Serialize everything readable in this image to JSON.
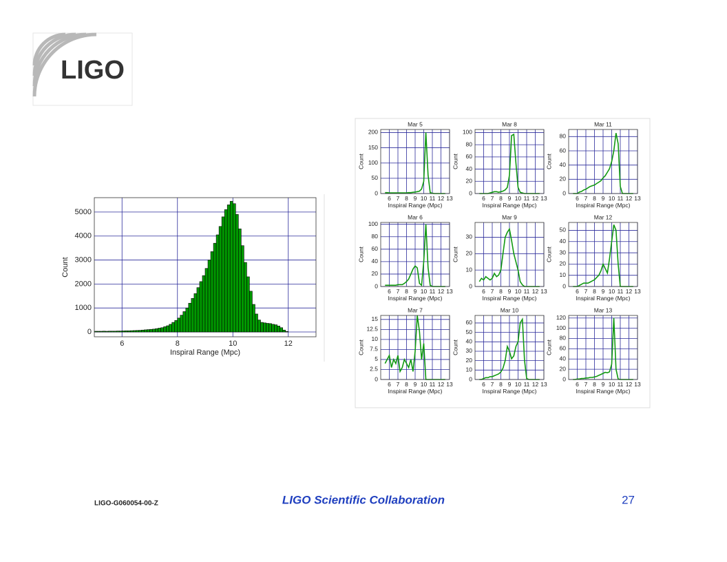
{
  "header": {
    "logo": "LIGO"
  },
  "chart_data": [
    {
      "type": "histogram",
      "xlabel": "Inspiral Range (Mpc)",
      "ylabel": "Count",
      "color": "#009900",
      "grid": true,
      "xlim": [
        5,
        13
      ],
      "ylim": [
        -200,
        5600
      ],
      "xticks": [
        6,
        8,
        10,
        12
      ],
      "yticks": [
        0,
        1000,
        2000,
        3000,
        4000,
        5000
      ],
      "bins": [
        5,
        5.1,
        5.2,
        5.3,
        5.4,
        5.5,
        5.6,
        5.7,
        5.8,
        5.9,
        6,
        6.1,
        6.2,
        6.3,
        6.4,
        6.5,
        6.6,
        6.7,
        6.8,
        6.9,
        7,
        7.1,
        7.2,
        7.3,
        7.4,
        7.5,
        7.6,
        7.7,
        7.8,
        7.9,
        8,
        8.1,
        8.2,
        8.3,
        8.4,
        8.5,
        8.6,
        8.7,
        8.8,
        8.9,
        9,
        9.1,
        9.2,
        9.3,
        9.4,
        9.5,
        9.6,
        9.7,
        9.8,
        9.9,
        10,
        10.1,
        10.2,
        10.3,
        10.4,
        10.5,
        10.6,
        10.7,
        10.8,
        10.9,
        11,
        11.1,
        11.2,
        11.3,
        11.4,
        11.5,
        11.6,
        11.7,
        11.8,
        11.9,
        12
      ],
      "values": [
        30,
        30,
        30,
        35,
        30,
        35,
        35,
        35,
        40,
        40,
        45,
        50,
        50,
        55,
        60,
        65,
        70,
        80,
        90,
        100,
        110,
        120,
        140,
        160,
        180,
        220,
        260,
        320,
        400,
        480,
        580,
        700,
        850,
        1000,
        1200,
        1400,
        1600,
        1850,
        2100,
        2350,
        2650,
        3000,
        3350,
        3700,
        4050,
        4400,
        4800,
        5100,
        5300,
        5450,
        5350,
        4900,
        4300,
        3600,
        2900,
        2300,
        1700,
        1150,
        750,
        500,
        400,
        380,
        360,
        350,
        320,
        300,
        250,
        180,
        80,
        20
      ]
    },
    {
      "type": "line",
      "title": "Mar 5",
      "xlabel": "Inspiral Range (Mpc)",
      "ylabel": "Count",
      "color": "#119911",
      "grid": true,
      "xlim": [
        5,
        13
      ],
      "ylim": [
        0,
        210
      ],
      "xticks": [
        6,
        7,
        8,
        9,
        10,
        11,
        12,
        13
      ],
      "yticks": [
        0,
        50,
        100,
        150,
        200
      ],
      "x": [
        5.5,
        5.75,
        6,
        6.25,
        6.5,
        6.75,
        7,
        7.25,
        7.5,
        7.75,
        8,
        8.25,
        8.5,
        8.75,
        9,
        9.25,
        9.5,
        9.75,
        10,
        10.25,
        10.5,
        10.75,
        11,
        11.25,
        11.5,
        11.75,
        12,
        12.25,
        12.5
      ],
      "values": [
        3,
        3,
        2,
        2,
        2,
        2,
        2,
        2,
        2,
        2,
        2,
        3,
        3,
        4,
        5,
        6,
        8,
        15,
        40,
        200,
        60,
        3,
        1,
        0,
        0,
        0,
        0,
        0,
        0
      ]
    },
    {
      "type": "line",
      "title": "Mar 8",
      "xlabel": "Inspiral Range (Mpc)",
      "ylabel": "Count",
      "color": "#119911",
      "grid": true,
      "xlim": [
        5,
        13
      ],
      "ylim": [
        0,
        105
      ],
      "xticks": [
        6,
        7,
        8,
        9,
        10,
        11,
        12,
        13
      ],
      "yticks": [
        0,
        20,
        40,
        60,
        80,
        100
      ],
      "x": [
        5.5,
        5.75,
        6,
        6.25,
        6.5,
        6.75,
        7,
        7.25,
        7.5,
        7.75,
        8,
        8.25,
        8.5,
        8.75,
        9,
        9.25,
        9.5,
        9.75,
        10,
        10.25,
        10.5,
        10.75,
        11,
        11.25,
        11.5,
        11.75,
        12,
        12.25,
        12.5
      ],
      "values": [
        0,
        0,
        0,
        0,
        0,
        1,
        2,
        3,
        3,
        2,
        3,
        4,
        6,
        10,
        30,
        95,
        97,
        50,
        10,
        2,
        1,
        0,
        0,
        0,
        0,
        0,
        0,
        0,
        0
      ]
    },
    {
      "type": "line",
      "title": "Mar 11",
      "xlabel": "Inspiral Range (Mpc)",
      "ylabel": "Count",
      "color": "#119911",
      "grid": true,
      "xlim": [
        5,
        13
      ],
      "ylim": [
        0,
        90
      ],
      "xticks": [
        6,
        7,
        8,
        9,
        10,
        11,
        12,
        13
      ],
      "yticks": [
        0,
        20,
        40,
        60,
        80
      ],
      "x": [
        5.5,
        5.75,
        6,
        6.25,
        6.5,
        6.75,
        7,
        7.25,
        7.5,
        7.75,
        8,
        8.25,
        8.5,
        8.75,
        9,
        9.25,
        9.5,
        9.75,
        10,
        10.25,
        10.5,
        10.75,
        11,
        11.25,
        11.5,
        11.75,
        12,
        12.25,
        12.5
      ],
      "values": [
        0,
        0,
        0,
        2,
        3,
        5,
        6,
        8,
        10,
        11,
        12,
        14,
        16,
        18,
        22,
        25,
        30,
        35,
        45,
        60,
        85,
        70,
        10,
        0,
        0,
        0,
        0,
        0,
        0
      ]
    },
    {
      "type": "line",
      "title": "Mar 6",
      "xlabel": "Inspiral Range (Mpc)",
      "ylabel": "Count",
      "color": "#119911",
      "grid": true,
      "xlim": [
        5,
        13
      ],
      "ylim": [
        0,
        103
      ],
      "xticks": [
        6,
        7,
        8,
        9,
        10,
        11,
        12,
        13
      ],
      "yticks": [
        0,
        20,
        40,
        60,
        80,
        100
      ],
      "x": [
        5.5,
        5.75,
        6,
        6.25,
        6.5,
        6.75,
        7,
        7.25,
        7.5,
        7.75,
        8,
        8.25,
        8.5,
        8.75,
        9,
        9.25,
        9.5,
        9.75,
        10,
        10.25,
        10.5,
        10.75,
        11,
        11.25,
        11.5,
        11.75,
        12,
        12.25,
        12.5
      ],
      "values": [
        2,
        2,
        2,
        2,
        2,
        2,
        3,
        3,
        3,
        5,
        8,
        12,
        20,
        28,
        33,
        30,
        5,
        2,
        40,
        100,
        30,
        2,
        0,
        0,
        0,
        0,
        0,
        0,
        0
      ]
    },
    {
      "type": "line",
      "title": "Mar 9",
      "xlabel": "Inspiral Range (Mpc)",
      "ylabel": "Count",
      "color": "#119911",
      "grid": true,
      "xlim": [
        5,
        13
      ],
      "ylim": [
        0,
        39
      ],
      "xticks": [
        6,
        7,
        8,
        9,
        10,
        11,
        12,
        13
      ],
      "yticks": [
        0,
        10,
        20,
        30
      ],
      "x": [
        5.5,
        5.75,
        6,
        6.25,
        6.5,
        6.75,
        7,
        7.25,
        7.5,
        7.75,
        8,
        8.25,
        8.5,
        8.75,
        9,
        9.25,
        9.5,
        9.75,
        10,
        10.25,
        10.5,
        10.75,
        11,
        11.25,
        11.5,
        11.75,
        12,
        12.25,
        12.5
      ],
      "values": [
        3,
        5,
        4,
        6,
        5,
        4,
        5,
        8,
        6,
        7,
        10,
        20,
        30,
        33,
        35,
        28,
        20,
        15,
        10,
        3,
        1,
        0,
        0,
        0,
        0,
        0,
        0,
        0,
        0
      ]
    },
    {
      "type": "line",
      "title": "Mar 12",
      "xlabel": "Inspiral Range (Mpc)",
      "ylabel": "Count",
      "color": "#119911",
      "grid": true,
      "xlim": [
        5,
        13
      ],
      "ylim": [
        0,
        57
      ],
      "xticks": [
        6,
        7,
        8,
        9,
        10,
        11,
        12,
        13
      ],
      "yticks": [
        0,
        10,
        20,
        30,
        40,
        50
      ],
      "x": [
        5.5,
        5.75,
        6,
        6.25,
        6.5,
        6.75,
        7,
        7.25,
        7.5,
        7.75,
        8,
        8.25,
        8.5,
        8.75,
        9,
        9.25,
        9.5,
        9.75,
        10,
        10.25,
        10.5,
        10.75,
        11,
        11.25,
        11.5,
        11.75,
        12,
        12.25,
        12.5
      ],
      "values": [
        0,
        0,
        0,
        1,
        2,
        3,
        3,
        3,
        4,
        5,
        6,
        8,
        10,
        14,
        20,
        16,
        12,
        25,
        40,
        55,
        50,
        20,
        0,
        0,
        0,
        0,
        0,
        0,
        0
      ]
    },
    {
      "type": "line",
      "title": "Mar 7",
      "xlabel": "Inspiral Range (Mpc)",
      "ylabel": "Count",
      "color": "#119911",
      "grid": true,
      "xlim": [
        5,
        13
      ],
      "ylim": [
        0,
        16
      ],
      "xticks": [
        6,
        7,
        8,
        9,
        10,
        11,
        12,
        13
      ],
      "yticks": [
        0,
        2.5,
        5,
        7.5,
        10,
        12.5,
        15
      ],
      "x": [
        5.5,
        5.75,
        6,
        6.25,
        6.5,
        6.75,
        7,
        7.25,
        7.5,
        7.75,
        8,
        8.25,
        8.5,
        8.75,
        9,
        9.25,
        9.5,
        9.75,
        10,
        10.25,
        10.5,
        10.75,
        11,
        11.25,
        11.5,
        11.75,
        12,
        12.25,
        12.5
      ],
      "values": [
        4,
        5,
        6,
        3,
        5,
        4,
        6,
        2,
        3,
        5,
        4,
        3,
        5,
        2,
        7,
        16,
        12,
        5,
        9,
        0,
        0,
        0,
        0,
        0,
        0,
        0,
        0,
        0,
        0
      ]
    },
    {
      "type": "line",
      "title": "Mar 10",
      "xlabel": "Inspiral Range (Mpc)",
      "ylabel": "Count",
      "color": "#119911",
      "grid": true,
      "xlim": [
        5,
        13
      ],
      "ylim": [
        0,
        68
      ],
      "xticks": [
        6,
        7,
        8,
        9,
        10,
        11,
        12,
        13
      ],
      "yticks": [
        0,
        10,
        20,
        30,
        40,
        50,
        60
      ],
      "x": [
        5.5,
        5.75,
        6,
        6.25,
        6.5,
        6.75,
        7,
        7.25,
        7.5,
        7.75,
        8,
        8.25,
        8.5,
        8.75,
        9,
        9.25,
        9.5,
        9.75,
        10,
        10.25,
        10.5,
        10.75,
        11,
        11.25,
        11.5,
        11.75,
        12,
        12.25,
        12.5
      ],
      "values": [
        0,
        0,
        1,
        2,
        2,
        3,
        3,
        4,
        5,
        6,
        8,
        12,
        20,
        35,
        30,
        22,
        25,
        35,
        40,
        60,
        64,
        20,
        1,
        0,
        0,
        0,
        0,
        0,
        0
      ]
    },
    {
      "type": "line",
      "title": "Mar 13",
      "xlabel": "Inspiral Range (Mpc)",
      "ylabel": "Count",
      "color": "#119911",
      "grid": true,
      "xlim": [
        5,
        13
      ],
      "ylim": [
        0,
        125
      ],
      "xticks": [
        6,
        7,
        8,
        9,
        10,
        11,
        12,
        13
      ],
      "yticks": [
        0,
        20,
        40,
        60,
        80,
        100,
        120
      ],
      "x": [
        5.5,
        5.75,
        6,
        6.25,
        6.5,
        6.75,
        7,
        7.25,
        7.5,
        7.75,
        8,
        8.25,
        8.5,
        8.75,
        9,
        9.25,
        9.5,
        9.75,
        10,
        10.25,
        10.5,
        10.75,
        11,
        11.25,
        11.5,
        11.75,
        12,
        12.25,
        12.5
      ],
      "values": [
        0,
        0,
        1,
        1,
        2,
        2,
        3,
        3,
        4,
        4,
        5,
        6,
        8,
        10,
        12,
        14,
        13,
        15,
        30,
        120,
        20,
        1,
        0,
        0,
        0,
        0,
        0,
        0,
        0
      ]
    }
  ],
  "footer": {
    "doc_id": "LIGO-G060054-00-Z",
    "organization": "LIGO Scientific Collaboration",
    "page": "27"
  }
}
